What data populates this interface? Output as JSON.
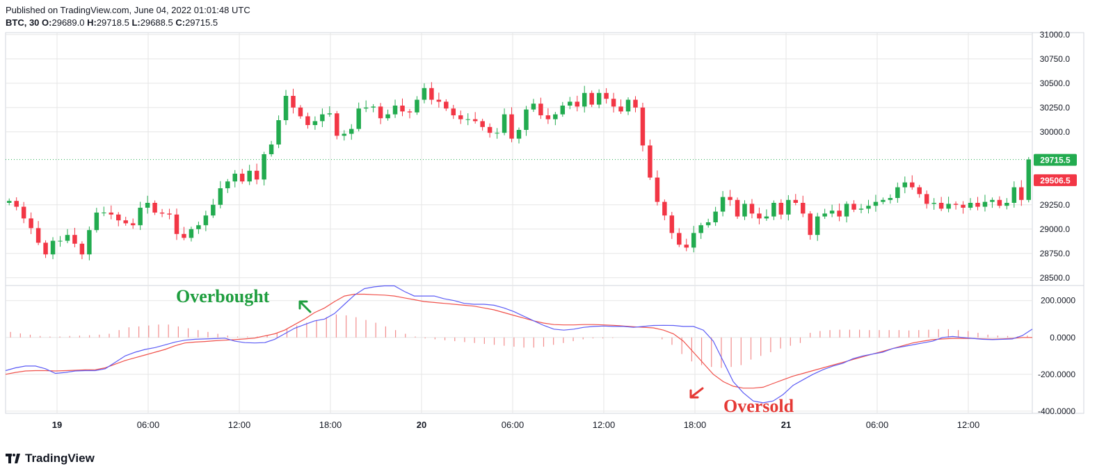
{
  "header": {
    "published": "Published on TradingView.com, June 04, 2022 01:01:48 UTC",
    "symbol": "BTC, 30",
    "o_label": "O:",
    "o_value": "29689.0",
    "h_label": "H:",
    "h_value": "29718.5",
    "l_label": "L:",
    "l_value": "29688.5",
    "c_label": "C:",
    "c_value": "29715.5"
  },
  "footer": {
    "brand": "TradingView"
  },
  "colors": {
    "up": "#22ab4f",
    "down": "#f23645",
    "macd": "#5b5bf5",
    "signal": "#f0504a",
    "hist": "#f28b8b",
    "grid": "#e6e6e6",
    "axis": "#131722"
  },
  "chart_data": [
    {
      "type": "candlestick",
      "title": "",
      "x_tick_labels": [
        "19",
        "06:00",
        "12:00",
        "18:00",
        "20",
        "06:00",
        "12:00",
        "18:00",
        "21",
        "06:00",
        "12:00"
      ],
      "y_ticks": [
        28500,
        28750,
        29000,
        29250,
        29500,
        30000,
        30250,
        30500,
        30750,
        31000
      ],
      "y_tick_labels": [
        "28500.0",
        "28750.0",
        "29000.0",
        "29250.0",
        "30000.0",
        "30250.0",
        "30500.0",
        "30750.0",
        "31000.0"
      ],
      "ylim": [
        28420,
        31020
      ],
      "price_labels": [
        {
          "value": 29715.5,
          "text": "29715.5",
          "color": "#22ab4f"
        },
        {
          "value": 29506.5,
          "text": "29506.5",
          "color": "#f23645"
        }
      ],
      "current_price_line": 29715.5,
      "closes": [
        29290,
        29230,
        29110,
        29010,
        28860,
        28740,
        28880,
        28880,
        28940,
        28850,
        28740,
        28990,
        29170,
        29170,
        29150,
        29090,
        29060,
        29040,
        29220,
        29270,
        29170,
        29160,
        29150,
        28950,
        28910,
        29000,
        29040,
        29140,
        29250,
        29420,
        29490,
        29570,
        29490,
        29600,
        29510,
        29770,
        29870,
        30120,
        30370,
        30250,
        30160,
        30070,
        30110,
        30180,
        30190,
        29960,
        29980,
        30030,
        30240,
        30250,
        30260,
        30140,
        30180,
        30270,
        30210,
        30200,
        30330,
        30450,
        30330,
        30310,
        30240,
        30170,
        30130,
        30130,
        30110,
        30050,
        29990,
        29990,
        30180,
        29930,
        30020,
        30230,
        30290,
        30170,
        30130,
        30180,
        30270,
        30310,
        30260,
        30400,
        30280,
        30400,
        30340,
        30260,
        30210,
        30330,
        30250,
        29860,
        29530,
        29280,
        29140,
        28960,
        28840,
        28810,
        28960,
        29040,
        29070,
        29180,
        29330,
        29300,
        29130,
        29260,
        29160,
        29110,
        29130,
        29270,
        29150,
        29300,
        29270,
        29160,
        28940,
        29130,
        29160,
        29190,
        29130,
        29260,
        29200,
        29210,
        29240,
        29280,
        29300,
        29320,
        29430,
        29480,
        29430,
        29360,
        29260,
        29270,
        29210,
        29260,
        29250,
        29220,
        29270,
        29230,
        29280,
        29300,
        29240,
        29270,
        29430,
        29300,
        29715.5
      ]
    },
    {
      "type": "line",
      "title": "",
      "y_ticks": [
        -400,
        -200,
        0,
        200
      ],
      "y_tick_labels": [
        "-400.0000",
        "-200.0000",
        "0.0000",
        "200.0000"
      ],
      "ylim": [
        -412,
        282
      ],
      "series": [
        {
          "color": "#5b5bf5",
          "values": [
            -180,
            -165,
            -155,
            -155,
            -170,
            -195,
            -190,
            -182,
            -180,
            -180,
            -170,
            -135,
            -100,
            -80,
            -65,
            -55,
            -40,
            -25,
            -15,
            -10,
            -8,
            -6,
            -4,
            -20,
            -28,
            -30,
            -28,
            -10,
            20,
            50,
            70,
            90,
            100,
            130,
            180,
            230,
            265,
            275,
            280,
            280,
            250,
            225,
            225,
            225,
            210,
            200,
            185,
            180,
            180,
            175,
            160,
            140,
            115,
            90,
            65,
            45,
            40,
            45,
            55,
            60,
            62,
            60,
            60,
            55,
            60,
            65,
            66,
            65,
            60,
            60,
            40,
            -20,
            -130,
            -240,
            -300,
            -345,
            -355,
            -345,
            -310,
            -260,
            -230,
            -200,
            -175,
            -155,
            -140,
            -115,
            -100,
            -90,
            -80,
            -60,
            -50,
            -40,
            -30,
            -20,
            0,
            5,
            0,
            -5,
            -10,
            -12,
            -10,
            -8,
            10,
            45
          ]
        }
      ],
      "signal_values": [
        -200,
        -190,
        -182,
        -180,
        -180,
        -182,
        -180,
        -178,
        -176,
        -175,
        -165,
        -145,
        -125,
        -110,
        -95,
        -80,
        -65,
        -45,
        -30,
        -25,
        -22,
        -18,
        -15,
        -12,
        -8,
        -3,
        8,
        20,
        40,
        70,
        100,
        135,
        160,
        195,
        225,
        235,
        235,
        232,
        230,
        225,
        215,
        205,
        195,
        190,
        185,
        180,
        175,
        170,
        160,
        150,
        135,
        120,
        105,
        90,
        78,
        70,
        68,
        68,
        70,
        70,
        68,
        66,
        62,
        58,
        55,
        52,
        40,
        20,
        -20,
        -80,
        -140,
        -200,
        -240,
        -265,
        -275,
        -275,
        -270,
        -250,
        -230,
        -210,
        -195,
        -180,
        -165,
        -150,
        -135,
        -120,
        -105,
        -90,
        -75,
        -60,
        -45,
        -30,
        -20,
        -12,
        -8,
        -5,
        -5,
        -5,
        -8,
        -10,
        -8,
        -5,
        0,
        0
      ],
      "histogram": [
        30,
        22,
        15,
        8,
        5,
        5,
        8,
        10,
        12,
        15,
        20,
        40,
        55,
        60,
        65,
        70,
        70,
        60,
        50,
        40,
        30,
        20,
        10,
        5,
        5,
        5,
        10,
        25,
        45,
        65,
        80,
        95,
        110,
        125,
        120,
        110,
        95,
        80,
        60,
        40,
        20,
        5,
        -5,
        -10,
        -15,
        -20,
        -25,
        -30,
        -35,
        -40,
        -45,
        -50,
        -55,
        -55,
        -50,
        -40,
        -30,
        -20,
        -10,
        -5,
        -5,
        -3,
        0,
        0,
        0,
        0,
        -10,
        -40,
        -90,
        -130,
        -150,
        -160,
        -165,
        -160,
        -150,
        -120,
        -100,
        -80,
        -60,
        -45,
        -30,
        25,
        35,
        40,
        42,
        42,
        42,
        40,
        40,
        40,
        40,
        38,
        40,
        42,
        45,
        45,
        40,
        35,
        25,
        15,
        10,
        8,
        5,
        10
      ],
      "annotations": [
        {
          "text": "Overbought",
          "color": "#1f9e3f"
        },
        {
          "text": "Oversold",
          "color": "#e53935"
        }
      ]
    }
  ]
}
